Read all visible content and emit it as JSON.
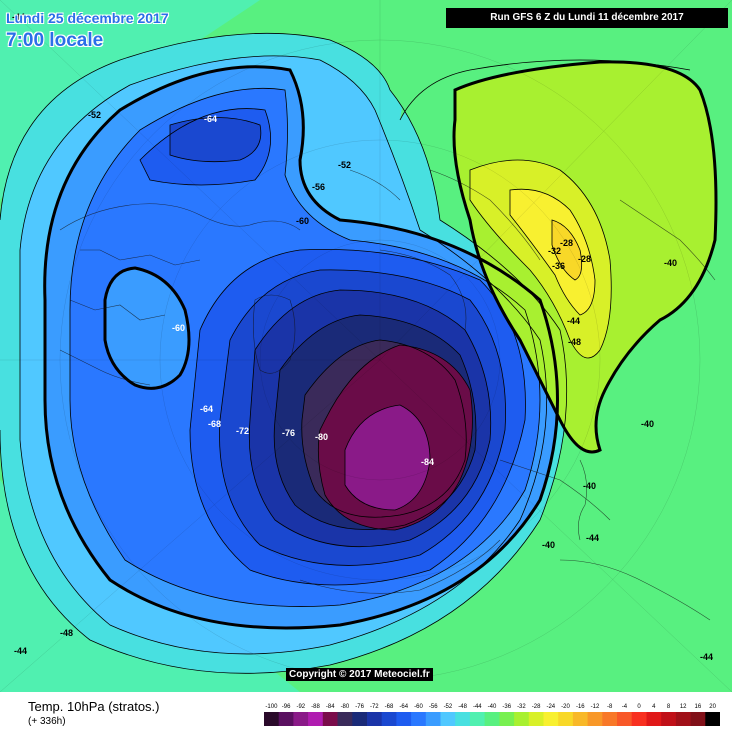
{
  "header": {
    "date_line": "Lundi 25 décembre 2017",
    "time_line": "7:00 locale",
    "run_info": "Run GFS 6 Z du Lundi 11 décembre 2017"
  },
  "footer": {
    "product_title": "Temp. 10hPa (stratos.)",
    "forecast_hour": "(+ 336h)",
    "copyright": "Copyright © 2017 Meteociel.fr"
  },
  "legend": {
    "values": [
      "-100",
      "-96",
      "-92",
      "-88",
      "-84",
      "-80",
      "-76",
      "-72",
      "-68",
      "-64",
      "-60",
      "-56",
      "-52",
      "-48",
      "-44",
      "-40",
      "-36",
      "-32",
      "-28",
      "-24",
      "-20",
      "-16",
      "-12",
      "-8",
      "-4",
      "0",
      "4",
      "8",
      "12",
      "16",
      "20"
    ],
    "colors": [
      "#2a0a2a",
      "#5a1060",
      "#8a1a88",
      "#b01cb0",
      "#7a0c4a",
      "#3a2a5a",
      "#1a2a78",
      "#1a34a8",
      "#1a48d0",
      "#1e5cf0",
      "#2a78ff",
      "#3a9cff",
      "#50c8ff",
      "#48e0e0",
      "#50f0b0",
      "#58f080",
      "#78f050",
      "#a8f030",
      "#d8f028",
      "#f8f030",
      "#f8d828",
      "#f8b828",
      "#f89828",
      "#f87828",
      "#f85828",
      "#f83020",
      "#e01818",
      "#c01018",
      "#a01018",
      "#801018",
      "#000000"
    ]
  },
  "map": {
    "contour_labels": [
      {
        "id": "m44",
        "text": "-44"
      },
      {
        "id": "m52a",
        "text": "-52"
      },
      {
        "id": "m64a",
        "text": "-64"
      },
      {
        "id": "m52b",
        "text": "-52"
      },
      {
        "id": "m56",
        "text": "-56"
      },
      {
        "id": "m60a",
        "text": "-60"
      },
      {
        "id": "m60b",
        "text": "-60"
      },
      {
        "id": "m64b",
        "text": "-64"
      },
      {
        "id": "m68",
        "text": "-68"
      },
      {
        "id": "m72",
        "text": "-72"
      },
      {
        "id": "m76",
        "text": "-76"
      },
      {
        "id": "m80",
        "text": "-80"
      },
      {
        "id": "m84",
        "text": "-84"
      },
      {
        "id": "m28a",
        "text": "-28"
      },
      {
        "id": "m32",
        "text": "-32"
      },
      {
        "id": "m28b",
        "text": "-28"
      },
      {
        "id": "m36",
        "text": "-36"
      },
      {
        "id": "m40a",
        "text": "-40"
      },
      {
        "id": "m44b",
        "text": "-44"
      },
      {
        "id": "m48a",
        "text": "-48"
      },
      {
        "id": "m40b",
        "text": "-40"
      },
      {
        "id": "m40c",
        "text": "-40"
      },
      {
        "id": "m40d",
        "text": "-40"
      },
      {
        "id": "m44c",
        "text": "-44"
      },
      {
        "id": "m48b",
        "text": "-48"
      },
      {
        "id": "m44d",
        "text": "-44"
      },
      {
        "id": "m44e",
        "text": "-44"
      }
    ]
  }
}
